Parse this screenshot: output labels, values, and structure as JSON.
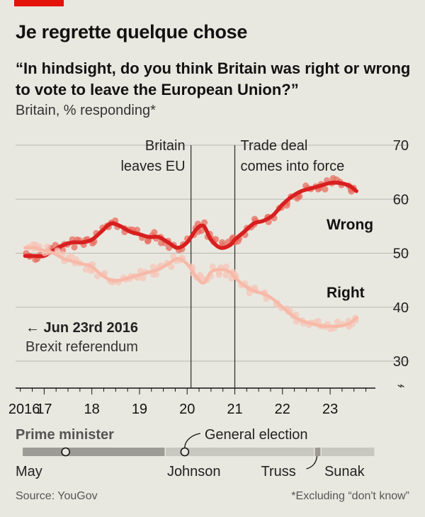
{
  "header": {
    "title": "Je regrette quelque chose",
    "subtitle": "“In hindsight, do you think Britain was right or wrong to vote to leave the European Union?”",
    "units": "Britain, % responding*"
  },
  "footer": {
    "source": "Source: YouGov",
    "footnote": "*Excluding “don't know”"
  },
  "colors": {
    "wrong": "#d81f1f",
    "right": "#f7b9a8",
    "background": "#e9e8e0",
    "grid": "#b8b7ae"
  },
  "chart_data": {
    "type": "line",
    "title": "Je regrette quelque chose",
    "ylim": [
      30,
      70
    ],
    "yticks": [
      30,
      40,
      50,
      60,
      70
    ],
    "xlim": [
      2016.4,
      2023.95
    ],
    "xticks": [
      {
        "value": 2016.7,
        "label": "2016"
      },
      {
        "value": 2017.0,
        "label": "17"
      },
      {
        "value": 2018.0,
        "label": "18"
      },
      {
        "value": 2019.0,
        "label": "19"
      },
      {
        "value": 2020.0,
        "label": "20"
      },
      {
        "value": 2021.0,
        "label": "21"
      },
      {
        "value": 2022.0,
        "label": "22"
      },
      {
        "value": 2023.0,
        "label": "23"
      }
    ],
    "axis_break_symbol": "⌁",
    "grid": true,
    "series": [
      {
        "name": "Wrong",
        "label": "Wrong",
        "color": "#d81f1f",
        "x": [
          2016.6,
          2016.8,
          2017.0,
          2017.2,
          2017.4,
          2017.6,
          2017.8,
          2018.0,
          2018.2,
          2018.4,
          2018.6,
          2018.8,
          2019.0,
          2019.2,
          2019.4,
          2019.6,
          2019.8,
          2020.0,
          2020.2,
          2020.35,
          2020.5,
          2020.7,
          2020.9,
          2021.0,
          2021.2,
          2021.4,
          2021.6,
          2021.8,
          2022.0,
          2022.2,
          2022.4,
          2022.6,
          2022.8,
          2023.0,
          2023.2,
          2023.4,
          2023.55
        ],
        "values": [
          49.5,
          49.5,
          49.5,
          50.5,
          51.5,
          52,
          52,
          52.5,
          54,
          55.5,
          55,
          54,
          53.5,
          53,
          53,
          52,
          51,
          52,
          54.5,
          55,
          52.5,
          51,
          51.5,
          52.5,
          54,
          55.5,
          56,
          57,
          59,
          60.5,
          61.5,
          62,
          62.5,
          63,
          63,
          62.5,
          61.5
        ]
      },
      {
        "name": "Right",
        "label": "Right",
        "color": "#f7b9a8",
        "x": [
          2016.6,
          2016.8,
          2017.0,
          2017.2,
          2017.4,
          2017.6,
          2017.8,
          2018.0,
          2018.2,
          2018.4,
          2018.6,
          2018.8,
          2019.0,
          2019.2,
          2019.4,
          2019.6,
          2019.8,
          2020.0,
          2020.2,
          2020.35,
          2020.5,
          2020.7,
          2020.9,
          2021.0,
          2021.2,
          2021.4,
          2021.6,
          2021.8,
          2022.0,
          2022.2,
          2022.4,
          2022.6,
          2022.8,
          2023.0,
          2023.2,
          2023.4,
          2023.55
        ],
        "values": [
          51,
          51,
          50.5,
          50,
          49,
          48.5,
          48,
          47.5,
          46,
          45,
          45,
          45.5,
          46,
          46.5,
          47,
          48,
          49,
          48,
          45.5,
          44.5,
          46.5,
          47,
          46.5,
          45.5,
          44,
          43,
          42.5,
          41.5,
          40,
          38.5,
          37.5,
          37,
          36.5,
          36.5,
          36.5,
          37,
          38
        ]
      }
    ],
    "events": [
      {
        "x": 2020.08,
        "label": "Britain leaves EU",
        "lines": [
          "Britain",
          "leaves EU"
        ],
        "align": "end"
      },
      {
        "x": 2021.0,
        "label": "Trade deal comes into force",
        "lines": [
          "Trade deal",
          "comes into force"
        ],
        "align": "start"
      }
    ],
    "annotation": {
      "arrow_text": "← Jun 23rd 2016",
      "text": "Brexit referendum"
    },
    "prime_minister": {
      "label": "Prime minister",
      "general_election_label": "General election",
      "terms": [
        {
          "name": "May",
          "start": 2016.55,
          "end": 2019.55,
          "color": "#9c9b95"
        },
        {
          "name": "Johnson",
          "start": 2019.55,
          "end": 2022.68,
          "color": "#c8c7c0"
        },
        {
          "name": "Truss",
          "start": 2022.68,
          "end": 2022.82,
          "color": "#9c9b95"
        },
        {
          "name": "Sunak",
          "start": 2022.82,
          "end": 2023.95,
          "color": "#c8c7c0"
        }
      ],
      "elections": [
        2017.45,
        2019.95
      ]
    }
  }
}
